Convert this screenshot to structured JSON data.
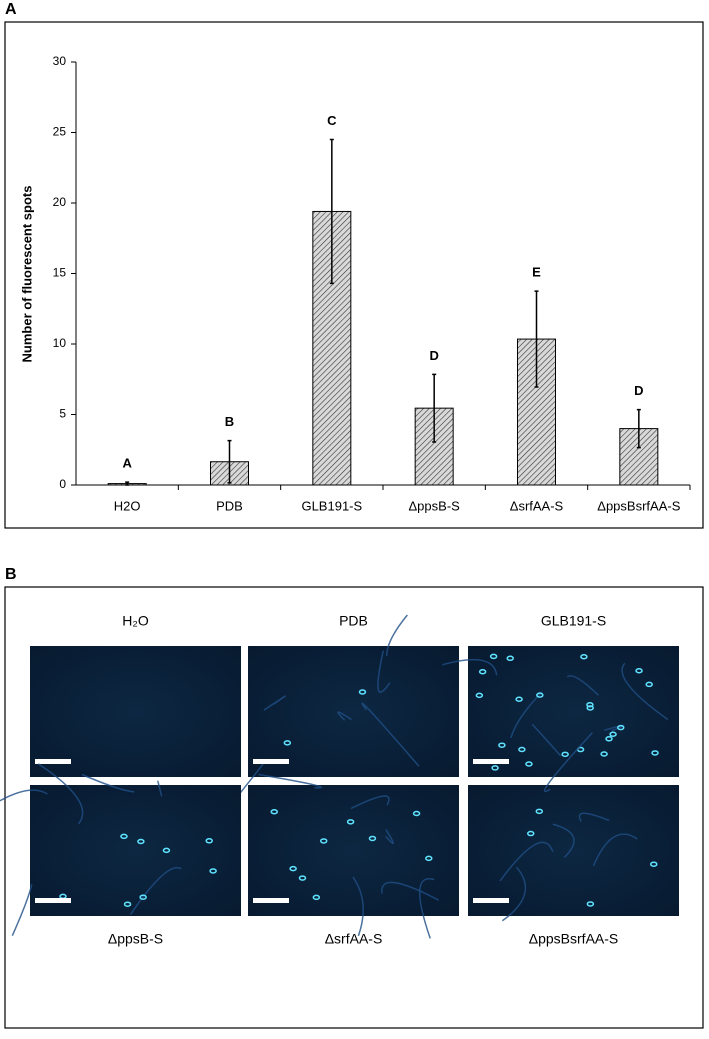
{
  "panel_labels": [
    "A",
    "B"
  ],
  "chart_data": {
    "type": "bar",
    "y_label": "Number of fluorescent spots",
    "categories": [
      "H2O",
      "PDB",
      "GLB191-S",
      "ΔppsB-S",
      "ΔsrfAA-S",
      "ΔppsBsrfAA-S"
    ],
    "values": [
      0.1,
      1.65,
      19.4,
      5.45,
      10.35,
      4.0
    ],
    "errors": [
      0.1,
      1.5,
      5.1,
      2.4,
      3.4,
      1.35
    ],
    "annotations": [
      "A",
      "B",
      "C",
      "D",
      "E",
      "D"
    ],
    "color": "#c8c8c8",
    "ylim": [
      0,
      30
    ],
    "yticks": [
      0,
      5,
      10,
      15,
      20,
      25,
      30
    ],
    "grid": false
  },
  "image_panel": {
    "labels": [
      "H₂O",
      "PDB",
      "GLB191-S",
      "ΔppsB-S",
      "ΔsrfAA-S",
      "ΔppsBsrfAA-S"
    ]
  }
}
